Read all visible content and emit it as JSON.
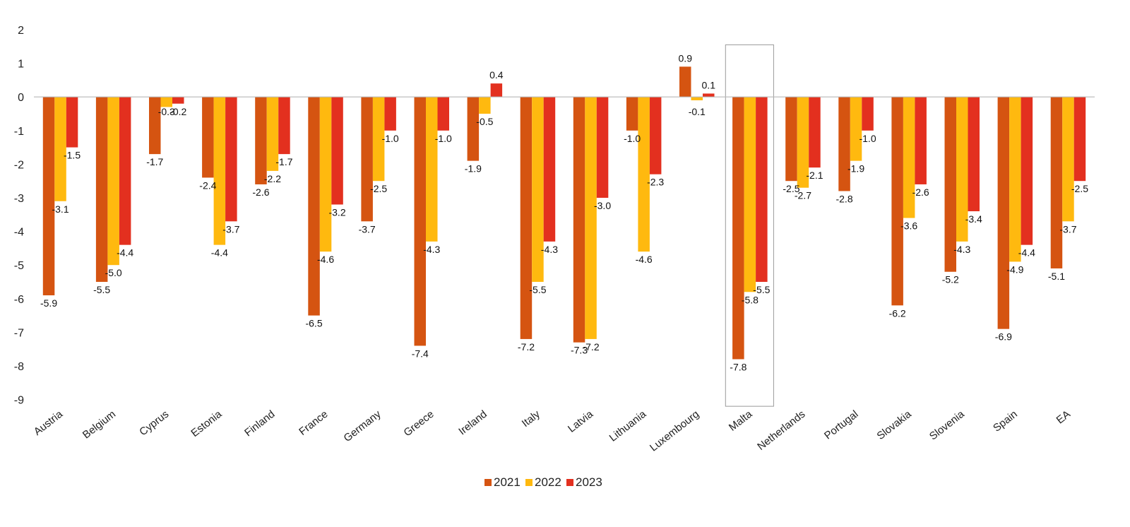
{
  "colors": {
    "s2021": "#D55411",
    "s2022": "#FFB90F",
    "s2023": "#E3301F",
    "axis": "#b7b7b7",
    "highlight_box": "#9a9a9a"
  },
  "chart_data": {
    "type": "bar",
    "title": "",
    "xlabel": "",
    "ylabel": "",
    "ylim": [
      -9,
      2
    ],
    "yticks": [
      2,
      1,
      0,
      -1,
      -2,
      -3,
      -4,
      -5,
      -6,
      -7,
      -8,
      -9
    ],
    "grid": false,
    "legend_position": "bottom-center",
    "highlighted_category": "Malta",
    "categories": [
      "Austria",
      "Belgium",
      "Cyprus",
      "Estonia",
      "Finland",
      "France",
      "Germany",
      "Greece",
      "Ireland",
      "Italy",
      "Latvia",
      "Lithuania",
      "Luxembourg",
      "Malta",
      "Netherlands",
      "Portugal",
      "Slovakia",
      "Slovenia",
      "Spain",
      "EA"
    ],
    "series": [
      {
        "name": "2021",
        "values": [
          -5.9,
          -5.5,
          -1.7,
          -2.4,
          -2.6,
          -6.5,
          -3.7,
          -7.4,
          -1.9,
          -7.2,
          -7.3,
          -1.0,
          0.9,
          -7.8,
          -2.5,
          -2.8,
          -6.2,
          -5.2,
          -6.9,
          -5.1
        ]
      },
      {
        "name": "2022",
        "values": [
          -3.1,
          -5.0,
          -0.3,
          -4.4,
          -2.2,
          -4.6,
          -2.5,
          -4.3,
          -0.5,
          -5.5,
          -7.2,
          -4.6,
          -0.1,
          -5.8,
          -2.7,
          -1.9,
          -3.6,
          -4.3,
          -4.9,
          -3.7
        ]
      },
      {
        "name": "2023",
        "values": [
          -1.5,
          -4.4,
          -0.2,
          -3.7,
          -1.7,
          -3.2,
          -1.0,
          -1.0,
          0.4,
          -4.3,
          -3.0,
          -2.3,
          0.1,
          -5.5,
          -2.1,
          -1.0,
          -2.6,
          -3.4,
          -4.4,
          -2.5
        ]
      }
    ]
  }
}
